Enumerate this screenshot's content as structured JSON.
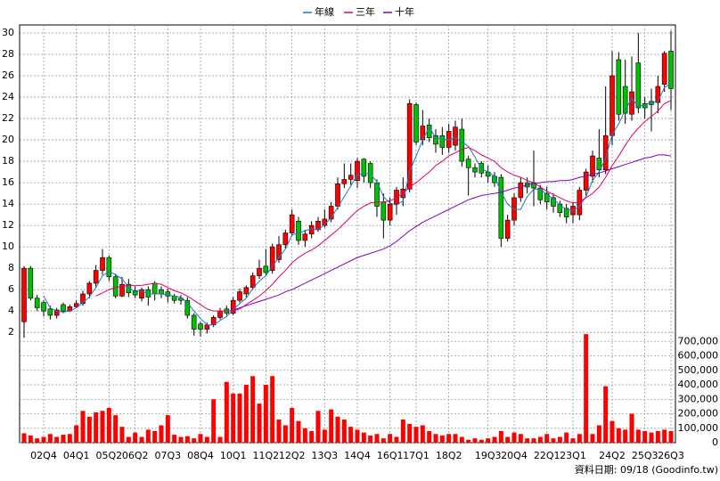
{
  "chart_data": {
    "type": "candlestick",
    "legend": "top",
    "grid": true,
    "footnote": "資料日期: 09/18 (Goodinfo.tw)",
    "up_color": "#ff0000",
    "down_color": "#00c000",
    "categories": [
      null,
      null,
      null,
      "02Q4",
      null,
      null,
      null,
      null,
      "04Q1",
      null,
      null,
      null,
      null,
      "05Q2",
      null,
      null,
      null,
      "06Q2",
      null,
      null,
      null,
      null,
      "07Q3",
      null,
      null,
      null,
      null,
      "08Q4",
      null,
      null,
      null,
      null,
      "10Q1",
      null,
      null,
      null,
      null,
      "11Q2",
      null,
      null,
      null,
      "12Q2",
      null,
      null,
      null,
      null,
      "13Q3",
      null,
      null,
      null,
      null,
      "14Q4",
      null,
      null,
      null,
      null,
      "16Q1",
      null,
      null,
      null,
      "17Q1",
      null,
      null,
      null,
      null,
      "18Q2",
      null,
      null,
      null,
      null,
      null,
      "19Q3",
      null,
      null,
      null,
      "20Q4",
      null,
      null,
      null,
      null,
      "22Q1",
      null,
      null,
      null,
      "23Q1",
      null,
      null,
      null,
      null,
      null,
      "24Q2",
      null,
      null,
      null,
      null,
      "25Q3",
      null,
      null,
      null,
      "26Q3"
    ],
    "open": [
      3.0,
      8.0,
      5.2,
      4.8,
      4.2,
      3.6,
      4.6,
      4.0,
      4.4,
      4.7,
      5.6,
      6.6,
      7.8,
      9.0,
      7.2,
      5.4,
      6.5,
      5.9,
      5.2,
      6.0,
      6.6,
      6.0,
      5.8,
      5.4,
      5.2,
      5.0,
      3.6,
      2.8,
      2.3,
      2.7,
      3.4,
      4.2,
      3.8,
      5.0,
      5.6,
      6.2,
      7.3,
      8.2,
      7.8,
      8.8,
      10.2,
      11.3,
      12.4,
      10.6,
      11.2,
      11.6,
      12.0,
      12.6,
      13.8,
      15.9,
      16.3,
      16.2,
      18.2,
      17.8,
      16.0,
      14.2,
      12.5,
      14.0,
      14.6,
      15.4,
      23.3,
      20.0,
      21.4,
      20.4,
      20.4,
      19.3,
      19.5,
      21.0,
      18.2,
      17.4,
      17.8,
      17.0,
      16.6,
      16.5,
      10.8,
      12.5,
      14.6,
      16.0,
      16.0,
      15.5,
      15.0,
      14.6,
      14.0,
      13.6,
      13.0,
      13.0,
      15.3,
      16.6,
      18.3,
      17.2,
      20.4,
      27.5,
      25.0,
      22.4,
      27.2,
      23.4,
      23.6,
      23.5,
      25.2,
      28.3
    ],
    "high": [
      8.2,
      8.2,
      5.5,
      5.0,
      4.5,
      4.3,
      4.8,
      4.6,
      5.0,
      5.9,
      6.8,
      8.3,
      9.8,
      9.2,
      7.5,
      7.2,
      7.0,
      6.3,
      6.2,
      6.3,
      6.8,
      6.3,
      6.1,
      5.6,
      5.5,
      5.3,
      3.8,
      3.0,
      2.9,
      3.6,
      4.3,
      4.5,
      5.3,
      6.1,
      6.4,
      7.6,
      8.8,
      9.8,
      10.3,
      11.0,
      11.6,
      13.5,
      12.8,
      11.6,
      12.4,
      12.8,
      13.5,
      14.2,
      16.5,
      17.8,
      17.8,
      18.3,
      18.3,
      18.0,
      16.3,
      15.0,
      14.6,
      15.6,
      16.5,
      23.8,
      23.5,
      22.8,
      22.0,
      21.0,
      21.2,
      21.5,
      21.8,
      22.0,
      18.5,
      17.8,
      18.0,
      17.6,
      17.0,
      16.8,
      13.0,
      15.0,
      16.5,
      16.5,
      19.0,
      15.8,
      15.6,
      15.0,
      14.3,
      14.0,
      14.2,
      15.6,
      17.3,
      19.0,
      21.0,
      25.0,
      28.3,
      28.2,
      27.5,
      27.8,
      30.0,
      24.0,
      24.8,
      26.0,
      28.3,
      30.2
    ],
    "low": [
      1.5,
      5.0,
      4.0,
      3.5,
      3.2,
      3.3,
      3.8,
      3.9,
      4.3,
      4.5,
      5.2,
      6.2,
      7.4,
      6.8,
      5.2,
      5.3,
      5.3,
      5.2,
      4.9,
      4.5,
      5.0,
      5.2,
      4.8,
      4.7,
      4.6,
      3.3,
      1.7,
      1.6,
      1.9,
      2.5,
      3.2,
      3.6,
      3.6,
      4.8,
      5.3,
      6.0,
      7.0,
      7.4,
      7.5,
      8.5,
      9.8,
      11.0,
      10.2,
      10.0,
      10.8,
      11.4,
      11.8,
      12.3,
      13.5,
      15.5,
      15.8,
      15.5,
      16.0,
      15.5,
      12.8,
      10.8,
      12.0,
      13.0,
      13.8,
      15.1,
      19.5,
      19.5,
      19.8,
      18.8,
      18.6,
      18.8,
      19.0,
      17.5,
      14.8,
      16.5,
      16.5,
      16.0,
      15.6,
      10.0,
      10.5,
      12.0,
      14.2,
      15.0,
      13.8,
      14.0,
      13.5,
      13.2,
      12.8,
      12.2,
      12.2,
      12.5,
      14.8,
      16.0,
      16.5,
      16.8,
      19.5,
      21.8,
      21.5,
      21.8,
      22.5,
      22.0,
      20.8,
      22.5,
      24.5,
      22.8
    ],
    "close": [
      8.0,
      5.2,
      4.3,
      4.0,
      3.6,
      4.1,
      4.0,
      4.4,
      4.7,
      5.6,
      6.6,
      7.8,
      9.0,
      7.2,
      5.4,
      6.5,
      5.7,
      5.5,
      6.0,
      5.3,
      5.6,
      5.6,
      5.4,
      5.0,
      5.0,
      3.6,
      2.3,
      2.3,
      2.7,
      3.4,
      4.0,
      3.8,
      5.0,
      5.8,
      6.2,
      7.3,
      8.0,
      7.6,
      10.0,
      10.2,
      11.3,
      13.0,
      10.6,
      11.2,
      12.0,
      12.4,
      12.6,
      13.8,
      15.9,
      16.3,
      16.7,
      18.0,
      16.6,
      16.0,
      13.8,
      12.5,
      14.0,
      15.3,
      15.4,
      23.4,
      19.8,
      21.3,
      20.2,
      19.6,
      19.3,
      20.8,
      21.2,
      18.0,
      17.4,
      17.0,
      16.9,
      16.6,
      16.0,
      10.8,
      12.5,
      14.6,
      16.0,
      15.6,
      15.5,
      14.4,
      14.2,
      13.8,
      13.2,
      12.8,
      13.8,
      15.3,
      17.0,
      18.5,
      17.2,
      20.4,
      26.0,
      22.4,
      22.5,
      24.5,
      23.0,
      23.0,
      23.3,
      25.0,
      28.1,
      24.8
    ],
    "ylim": [
      1.6,
      30.75
    ],
    "yticks": [
      2,
      4,
      6,
      8,
      10,
      12,
      14,
      16,
      18,
      20,
      22,
      24,
      26,
      28,
      30
    ],
    "lines": [
      {
        "name": "年線",
        "color": "#1f77c8",
        "values": [
          null,
          null,
          null,
          5.4,
          4.3,
          4.0,
          3.9,
          4.0,
          4.3,
          4.8,
          5.3,
          6.2,
          7.3,
          7.7,
          7.4,
          7.0,
          6.2,
          5.8,
          5.9,
          5.6,
          5.6,
          5.6,
          5.5,
          5.4,
          5.3,
          4.8,
          4.0,
          3.3,
          2.7,
          2.7,
          3.1,
          3.5,
          4.1,
          4.7,
          5.2,
          6.1,
          6.8,
          7.3,
          8.2,
          9.0,
          9.8,
          11.1,
          11.3,
          11.5,
          11.7,
          11.6,
          12.1,
          12.7,
          13.7,
          14.7,
          15.7,
          16.7,
          16.9,
          16.8,
          16.1,
          14.7,
          14.1,
          13.9,
          14.3,
          17.0,
          18.5,
          20.0,
          21.2,
          20.2,
          20.1,
          20.0,
          20.2,
          19.8,
          19.4,
          18.4,
          17.3,
          17.0,
          16.6,
          15.1,
          14.0,
          13.5,
          13.5,
          14.7,
          15.4,
          15.4,
          14.9,
          14.5,
          13.9,
          13.5,
          13.4,
          13.8,
          14.7,
          16.2,
          17.0,
          18.3,
          20.5,
          21.5,
          22.8,
          23.9,
          23.1,
          23.3,
          23.5,
          23.6,
          24.9,
          25.3
        ]
      },
      {
        "name": "三年",
        "color": "#e0006a",
        "values": [
          null,
          null,
          null,
          null,
          null,
          null,
          null,
          null,
          null,
          null,
          null,
          5.4,
          5.7,
          6.0,
          6.2,
          6.3,
          6.4,
          6.4,
          6.4,
          6.5,
          6.6,
          6.5,
          6.2,
          5.9,
          5.7,
          5.4,
          5.0,
          4.6,
          4.2,
          4.0,
          4.0,
          4.0,
          4.0,
          4.2,
          4.6,
          5.0,
          5.4,
          5.9,
          6.5,
          7.2,
          7.8,
          8.5,
          9.0,
          9.4,
          9.7,
          10.1,
          10.6,
          11.1,
          11.6,
          12.2,
          12.8,
          13.4,
          13.8,
          14.1,
          14.2,
          14.2,
          14.3,
          14.6,
          15.0,
          15.6,
          16.0,
          16.5,
          17.0,
          17.6,
          18.0,
          18.5,
          18.8,
          19.1,
          19.3,
          19.0,
          18.6,
          18.3,
          18.0,
          17.4,
          17.0,
          16.7,
          16.5,
          16.2,
          16.0,
          15.6,
          15.2,
          14.9,
          14.6,
          14.3,
          14.1,
          14.2,
          14.6,
          15.0,
          15.6,
          16.5,
          17.6,
          18.5,
          19.5,
          20.4,
          21.1,
          21.7,
          22.2,
          22.7,
          23.4,
          23.7
        ]
      },
      {
        "name": "十年",
        "color": "#8000c0",
        "values": [
          null,
          null,
          null,
          null,
          null,
          null,
          null,
          null,
          null,
          null,
          null,
          null,
          null,
          null,
          null,
          null,
          null,
          null,
          null,
          null,
          null,
          null,
          null,
          null,
          null,
          null,
          null,
          null,
          null,
          null,
          null,
          null,
          4.1,
          4.3,
          4.5,
          4.7,
          4.9,
          5.1,
          5.3,
          5.5,
          5.8,
          6.0,
          6.3,
          6.6,
          6.9,
          7.2,
          7.5,
          7.8,
          8.1,
          8.4,
          8.7,
          9.0,
          9.2,
          9.4,
          9.6,
          9.8,
          10.1,
          10.5,
          11.0,
          11.5,
          11.9,
          12.3,
          12.6,
          12.9,
          13.2,
          13.5,
          13.8,
          14.1,
          14.4,
          14.6,
          14.8,
          14.9,
          15.0,
          15.1,
          15.3,
          15.5,
          15.6,
          15.8,
          15.9,
          16.0,
          16.1,
          16.1,
          16.2,
          16.2,
          16.3,
          16.5,
          16.6,
          16.8,
          16.9,
          17.1,
          17.3,
          17.5,
          17.7,
          17.9,
          18.1,
          18.3,
          18.4,
          18.6,
          18.6,
          18.5
        ]
      }
    ],
    "volume": {
      "color": "#ff0000",
      "values": [
        65000,
        50000,
        30000,
        40000,
        60000,
        40000,
        55000,
        60000,
        120000,
        220000,
        180000,
        210000,
        220000,
        240000,
        190000,
        110000,
        40000,
        70000,
        40000,
        90000,
        80000,
        120000,
        190000,
        55000,
        40000,
        45000,
        30000,
        60000,
        40000,
        300000,
        40000,
        420000,
        340000,
        340000,
        400000,
        460000,
        270000,
        400000,
        460000,
        160000,
        120000,
        240000,
        150000,
        100000,
        80000,
        220000,
        90000,
        230000,
        180000,
        160000,
        110000,
        90000,
        70000,
        50000,
        60000,
        30000,
        60000,
        40000,
        160000,
        130000,
        110000,
        120000,
        80000,
        60000,
        50000,
        60000,
        60000,
        40000,
        20000,
        30000,
        20000,
        30000,
        40000,
        80000,
        40000,
        70000,
        60000,
        30000,
        30000,
        40000,
        60000,
        30000,
        40000,
        70000,
        30000,
        60000,
        750000,
        60000,
        120000,
        390000,
        150000,
        100000,
        90000,
        200000,
        90000,
        80000,
        70000,
        80000,
        90000,
        80000
      ],
      "ylim": [
        0,
        720000
      ],
      "yticks": [
        0,
        {
          "value": 100000,
          "label": "100,000"
        },
        {
          "value": 200000,
          "label": "200,000"
        },
        {
          "value": 300000,
          "label": "300,000"
        },
        {
          "value": 400000,
          "label": "400,000"
        },
        {
          "value": 500000,
          "label": "500,000"
        },
        {
          "value": 600000,
          "label": "600,000"
        },
        {
          "value": 700000,
          "label": "700,000"
        }
      ]
    }
  }
}
